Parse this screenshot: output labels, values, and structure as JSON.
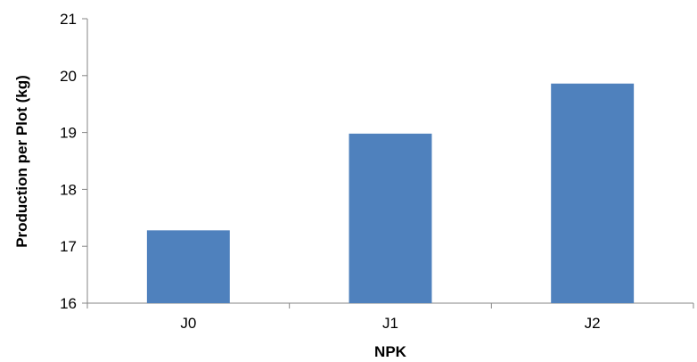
{
  "chart_data": {
    "type": "bar",
    "title": "",
    "categories": [
      "J0",
      "J1",
      "J2"
    ],
    "values": [
      17.28,
      18.98,
      19.86
    ],
    "xlabel": "NPK",
    "ylabel": "Production per Plot  (kg)",
    "ylim": [
      16,
      21
    ],
    "yticks": [
      "16",
      "17",
      "18",
      "19",
      "20",
      "21"
    ],
    "grid": false,
    "legend": "none",
    "bar_color": "#4F81BD"
  }
}
